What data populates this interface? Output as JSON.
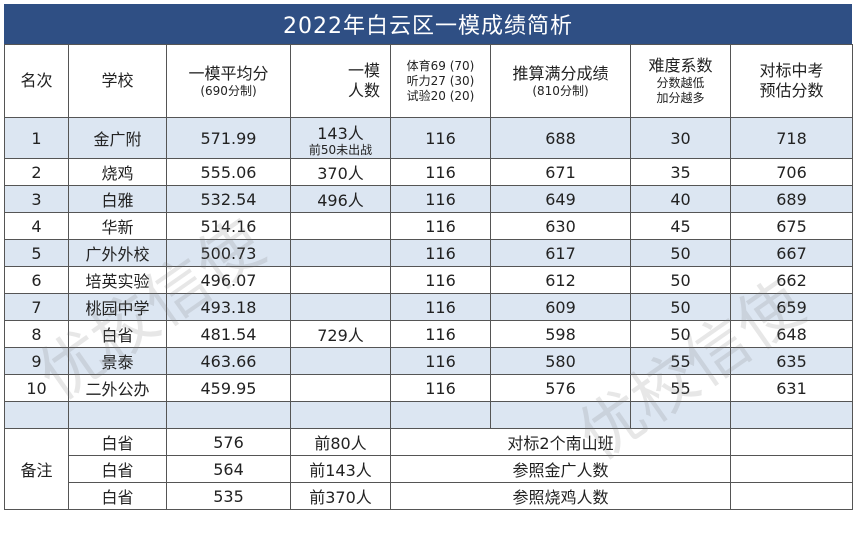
{
  "title": "2022年白云区一模成绩简析",
  "headers": {
    "rank": "名次",
    "school": "学校",
    "avg": "一模平均分",
    "avg_sub": "(690分制)",
    "count_top": "一模",
    "count_bottom": "人数",
    "pe": "体育69 (70)",
    "listen": "听力27 (30)",
    "exp": "试验20 (20)",
    "full": "推算满分成绩",
    "full_sub": "(810分制)",
    "diff": "难度系数",
    "diff_sub1": "分数越低",
    "diff_sub2": "加分越多",
    "est1": "对标中考",
    "est2": "预估分数"
  },
  "rows": [
    {
      "rank": "1",
      "school": "金广附",
      "avg": "571.99",
      "count": "143人",
      "count_note": "前50未出战",
      "extra": "116",
      "full": "688",
      "diff": "30",
      "est": "718"
    },
    {
      "rank": "2",
      "school": "烧鸡",
      "avg": "555.06",
      "count": "370人",
      "count_note": "",
      "extra": "116",
      "full": "671",
      "diff": "35",
      "est": "706"
    },
    {
      "rank": "3",
      "school": "白雅",
      "avg": "532.54",
      "count": "496人",
      "count_note": "",
      "extra": "116",
      "full": "649",
      "diff": "40",
      "est": "689"
    },
    {
      "rank": "4",
      "school": "华新",
      "avg": "514.16",
      "count": "",
      "count_note": "",
      "extra": "116",
      "full": "630",
      "diff": "45",
      "est": "675"
    },
    {
      "rank": "5",
      "school": "广外外校",
      "avg": "500.73",
      "count": "",
      "count_note": "",
      "extra": "116",
      "full": "617",
      "diff": "50",
      "est": "667"
    },
    {
      "rank": "6",
      "school": "培英实验",
      "avg": "496.07",
      "count": "",
      "count_note": "",
      "extra": "116",
      "full": "612",
      "diff": "50",
      "est": "662"
    },
    {
      "rank": "7",
      "school": "桃园中学",
      "avg": "493.18",
      "count": "",
      "count_note": "",
      "extra": "116",
      "full": "609",
      "diff": "50",
      "est": "659"
    },
    {
      "rank": "8",
      "school": "白省",
      "avg": "481.54",
      "count": "729人",
      "count_note": "",
      "extra": "116",
      "full": "598",
      "diff": "50",
      "est": "648"
    },
    {
      "rank": "9",
      "school": "景泰",
      "avg": "463.66",
      "count": "",
      "count_note": "",
      "extra": "116",
      "full": "580",
      "diff": "55",
      "est": "635"
    },
    {
      "rank": "10",
      "school": "二外公办",
      "avg": "459.95",
      "count": "",
      "count_note": "",
      "extra": "116",
      "full": "576",
      "diff": "55",
      "est": "631"
    }
  ],
  "notes_label": "备注",
  "notes": [
    {
      "school": "白省",
      "score": "576",
      "rank": "前80人",
      "desc": "对标2个南山班"
    },
    {
      "school": "白省",
      "score": "564",
      "rank": "前143人",
      "desc": "参照金广人数"
    },
    {
      "school": "白省",
      "score": "535",
      "rank": "前370人",
      "desc": "参照烧鸡人数"
    }
  ],
  "watermark": "优校信使"
}
